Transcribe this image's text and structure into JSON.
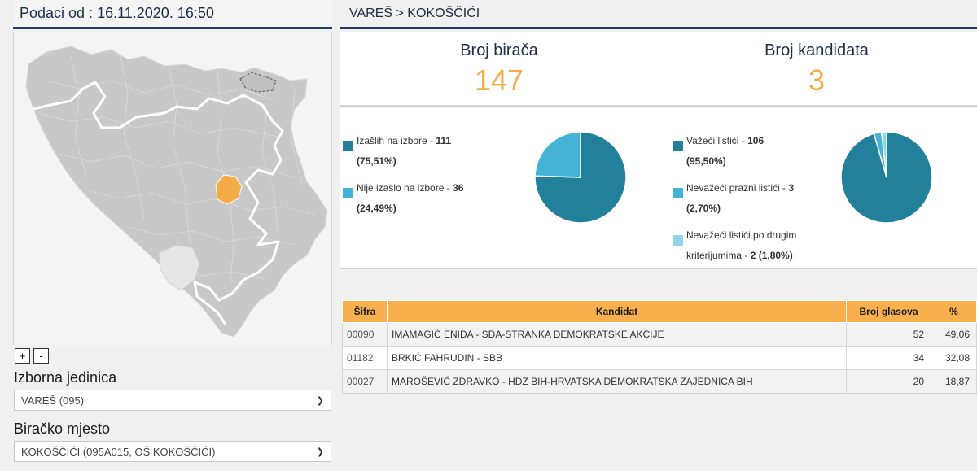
{
  "header": {
    "date_label": "Podaci od : 16.11.2020. 16:50",
    "breadcrumb": "VAREŠ > KOKOŠČIĆI"
  },
  "zoom": {
    "in": "+",
    "out": "-"
  },
  "filters": {
    "unit_label": "Izborna jedinica",
    "unit_value": "VAREŠ (095)",
    "place_label": "Biračko mjesto",
    "place_value": "KOKOŠČIĆI (095A015, OŠ KOKOŠČIĆI)"
  },
  "stats": {
    "voters_label": "Broj birača",
    "voters_value": "147",
    "candidates_label": "Broj kandidata",
    "candidates_value": "3"
  },
  "turnout": {
    "items": [
      {
        "label": "Izašlih na izbore - ",
        "value": "111",
        "pct": "(75,51%)",
        "color": "#23809a"
      },
      {
        "label": "Nije izašlo na izbore - ",
        "value": "36",
        "pct": "(24,49%)",
        "color": "#45b3d6"
      }
    ]
  },
  "ballots": {
    "items": [
      {
        "label": "Važeći listići - ",
        "value": "106",
        "pct": "(95,50%)",
        "color": "#23809a"
      },
      {
        "label": "Nevažeći prazni listići - ",
        "value": "3",
        "pct": "(2,70%)",
        "color": "#45b3d6"
      },
      {
        "label1": "Nevažeći listići po drugim",
        "label2": "kriterijumima - ",
        "value": "2",
        "pct": "(1,80%)",
        "color": "#8fd3ec"
      }
    ]
  },
  "chart_data": [
    {
      "type": "pie",
      "values": [
        111,
        36
      ],
      "colors": [
        "#23809a",
        "#45b3d6"
      ]
    },
    {
      "type": "pie",
      "values": [
        106,
        3,
        2
      ],
      "colors": [
        "#23809a",
        "#45b3d6",
        "#8fd3ec"
      ]
    }
  ],
  "table": {
    "headers": [
      "Šifra",
      "Kandidat",
      "Broj glasova",
      "%"
    ],
    "rows": [
      {
        "sifra": "00090",
        "kandidat": "IMAMAGIĆ ENIDA - SDA-STRANKA DEMOKRATSKE AKCIJE",
        "glasova": "52",
        "pct": "49,06"
      },
      {
        "sifra": "01182",
        "kandidat": "BRKIĆ FAHRUDIN - SBB",
        "glasova": "34",
        "pct": "32,08"
      },
      {
        "sifra": "00027",
        "kandidat": "MAROŠEVIĆ ZDRAVKO - HDZ BIH-HRVATSKA DEMOKRATSKA ZAJEDNICA BIH",
        "glasova": "20",
        "pct": "18,87"
      }
    ]
  }
}
